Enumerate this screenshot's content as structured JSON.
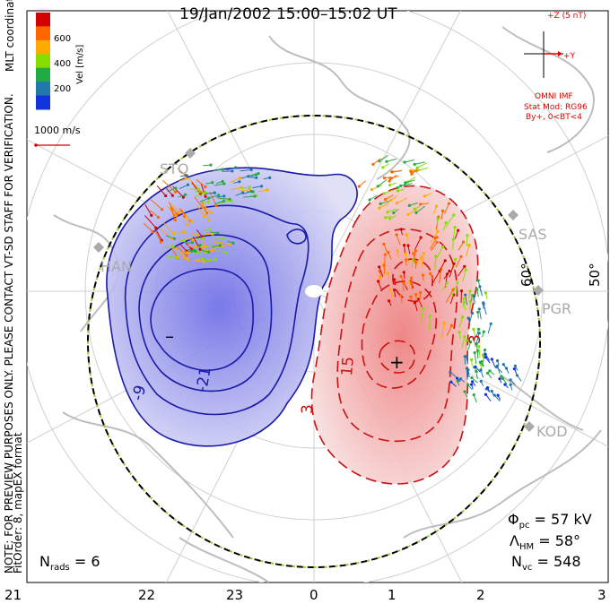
{
  "title": "19/Jan/2002 15:00–15:02 UT",
  "note_line1": "NOTE: FOR PREVIEW PURPOSES ONLY. PLEASE CONTACT VT-SD STAFF FOR VERIFICATION.",
  "note_line2": "FitOrder: 8, mapEX format",
  "mlt_label": "MLT coordinates",
  "colorbar": {
    "ticks": [
      "600",
      "400",
      "200"
    ],
    "label": "Vel [m/s]",
    "colors": [
      "#d40000",
      "#ff6600",
      "#ffaa00",
      "#88dd00",
      "#22aa44",
      "#2277aa",
      "#1133dd"
    ]
  },
  "scale_label": "1000 m/s",
  "imf": {
    "z_label": "+Z (5 nT)",
    "y_label": "+Y",
    "source": "OMNI IMF",
    "model": "Stat Mod: RG96",
    "condition": "By+, 0<BT<4"
  },
  "stations": [
    "STO",
    "HAN",
    "SAS",
    "PGR",
    "KOD"
  ],
  "lat_labels": [
    "60°",
    "50°"
  ],
  "contour_labels": [
    "-9",
    "-21",
    "3",
    "15",
    "3"
  ],
  "markers": {
    "min": "–",
    "max": "+"
  },
  "stats": {
    "phi_pc": "57 kV",
    "lambda_hm": "58°",
    "n_vc": "548",
    "n_rads": "6"
  },
  "mlt_ticks": [
    "21",
    "22",
    "23",
    "0",
    "1",
    "2",
    "3"
  ],
  "colors": {
    "negative": "#1a1aaa",
    "positive": "#cc1111",
    "boundary": "#000000"
  }
}
